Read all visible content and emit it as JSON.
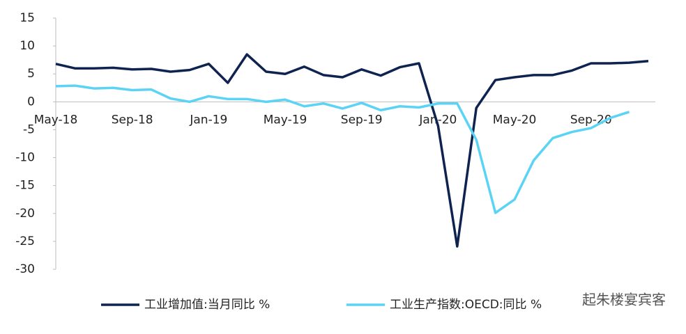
{
  "chart_data": {
    "type": "line",
    "categories": [
      "May-18",
      null,
      null,
      null,
      "Sep-18",
      null,
      null,
      null,
      "Jan-19",
      null,
      null,
      null,
      "May-19",
      null,
      null,
      null,
      "Sep-19",
      null,
      null,
      null,
      "Jan-20",
      null,
      null,
      null,
      "May-20",
      null,
      null,
      null,
      "Sep-20",
      null,
      null,
      null
    ],
    "series": [
      {
        "name": "工业增加值:当月同比 %",
        "color": "#0e2350",
        "values": [
          6.8,
          6.0,
          6.0,
          6.1,
          5.8,
          5.9,
          5.4,
          5.7,
          6.8,
          3.4,
          8.5,
          5.4,
          5.0,
          6.3,
          4.8,
          4.4,
          5.8,
          4.7,
          6.2,
          6.9,
          -4.3,
          -25.9,
          -1.1,
          3.9,
          4.4,
          4.8,
          4.8,
          5.6,
          6.9,
          6.9,
          7.0,
          7.3
        ]
      },
      {
        "name": "工业生产指数:OECD:同比 %",
        "color": "#5bd3f5",
        "values": [
          2.8,
          2.9,
          2.4,
          2.5,
          2.1,
          2.2,
          0.6,
          0.0,
          1.0,
          0.5,
          0.5,
          0.0,
          0.4,
          -0.8,
          -0.3,
          -1.2,
          -0.2,
          -1.5,
          -0.8,
          -1.0,
          -0.3,
          -0.3,
          -6.8,
          -19.9,
          -17.5,
          -10.5,
          -6.5,
          -5.4,
          -4.7,
          -2.9,
          -1.8,
          null
        ]
      }
    ],
    "ylim": [
      -30,
      15
    ],
    "yticks": [
      -30,
      -25,
      -20,
      -15,
      -10,
      -5,
      0,
      5,
      10,
      15
    ],
    "watermark": "起朱楼宴宾客"
  }
}
